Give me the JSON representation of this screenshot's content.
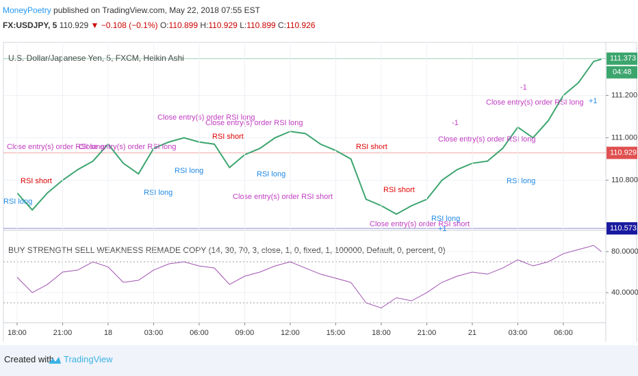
{
  "header": {
    "author": "MoneyPoetry",
    "published": "published on TradingView.com, May 22, 2018 07:55 EST",
    "symbol": "FX:USDJPY, 5",
    "price": "110.929",
    "change": "▼ −0.108 (−0.1%)",
    "ohlc": [
      {
        "label": "O:",
        "value": "110.899"
      },
      {
        "label": "H:",
        "value": "110.929"
      },
      {
        "label": "L:",
        "value": "110.899"
      },
      {
        "label": "C:",
        "value": "110.926"
      }
    ]
  },
  "chart_data": [
    {
      "type": "line",
      "title": "U.S. Dollar/Japanese Yen, 5, FXCM, Heikin Ashi",
      "x": [
        0,
        1,
        2,
        3,
        4,
        5,
        6,
        7,
        8,
        9,
        10,
        11,
        12,
        13,
        14,
        15,
        16,
        17,
        18,
        19,
        20,
        21,
        22,
        23,
        24,
        25,
        26,
        27,
        28,
        29,
        30,
        31,
        32,
        33,
        34,
        35,
        36,
        37,
        38,
        38.5
      ],
      "values": [
        110.74,
        110.66,
        110.74,
        110.8,
        110.85,
        110.89,
        110.97,
        110.88,
        110.83,
        110.95,
        110.98,
        111.0,
        110.98,
        110.97,
        110.86,
        110.92,
        110.95,
        111.0,
        111.03,
        111.02,
        110.97,
        110.94,
        110.9,
        110.71,
        110.68,
        110.64,
        110.68,
        110.71,
        110.8,
        110.85,
        110.88,
        110.89,
        110.95,
        111.05,
        111.0,
        111.08,
        111.2,
        111.26,
        111.36,
        111.37
      ],
      "color": "#3ca56e",
      "xlim": [
        -0.9,
        38.8
      ],
      "ylim": [
        110.57,
        111.44
      ],
      "yticks": [
        {
          "value": 111.2,
          "label": "111.200"
        },
        {
          "value": 111.0,
          "label": "111.000"
        },
        {
          "value": 110.8,
          "label": "110.800"
        }
      ],
      "grid": true,
      "markers": [
        {
          "value": 111.373,
          "color": "#3ca56e"
        },
        {
          "value": 110.929,
          "color": "#e05050"
        },
        {
          "value": 110.573,
          "color": "#1a1aa0"
        }
      ],
      "countdown": "04:48",
      "annotations": [
        {
          "text": "Close entry(s) order RSI long",
          "color": "#c03cc0"
        },
        {
          "text": "Close entry(s) order RSI long",
          "color": "#c03cc0"
        },
        {
          "text": "Close entry(s) order RSI long",
          "color": "#c03cc0"
        },
        {
          "text": "Close entry(s) order RSI long",
          "color": "#c03cc0"
        },
        {
          "text": "Close entry(s) order RSI long",
          "color": "#c03cc0"
        },
        {
          "text": "Close entry(s) order RSI long",
          "color": "#c03cc0"
        },
        {
          "text": "Close entry(s) order RSI short",
          "color": "#c03cc0"
        },
        {
          "text": "Close entry(s) order RSI short",
          "color": "#c03cc0"
        },
        {
          "text": "RSI short",
          "color": "#e00000"
        },
        {
          "text": "RSI short",
          "color": "#e00000"
        },
        {
          "text": "RSI short",
          "color": "#e00000"
        },
        {
          "text": "RSI short",
          "color": "#e00000"
        },
        {
          "text": "RSI long",
          "color": "#1e88e5"
        },
        {
          "text": "RSI long",
          "color": "#1e88e5"
        },
        {
          "text": "RSI long",
          "color": "#1e88e5"
        },
        {
          "text": "RSI long",
          "color": "#1e88e5"
        },
        {
          "text": "RSI long",
          "color": "#1e88e5"
        },
        {
          "text": "RSI long",
          "color": "#1e88e5"
        },
        {
          "text": "-1",
          "color": "#c03cc0"
        },
        {
          "text": "-1",
          "color": "#c03cc0"
        },
        {
          "text": "+1",
          "color": "#1e88e5"
        },
        {
          "text": "+1",
          "color": "#1e88e5"
        }
      ]
    },
    {
      "type": "line",
      "title": "BUY STRENGTH SELL WEAKNESS REMADE COPY (14, 30, 70, 3, close, 1, 0, fixed, 1, 100000, Default, 0, percent, 0)",
      "x": [
        0,
        1,
        2,
        3,
        4,
        5,
        6,
        7,
        8,
        9,
        10,
        11,
        12,
        13,
        14,
        15,
        16,
        17,
        18,
        19,
        20,
        21,
        22,
        23,
        24,
        25,
        26,
        27,
        28,
        29,
        30,
        31,
        32,
        33,
        34,
        35,
        36,
        37,
        38,
        38.5
      ],
      "values": [
        55,
        40,
        48,
        60,
        62,
        70,
        65,
        50,
        52,
        62,
        68,
        70,
        66,
        64,
        48,
        56,
        60,
        66,
        70,
        64,
        58,
        54,
        50,
        30,
        25,
        35,
        32,
        40,
        50,
        56,
        60,
        58,
        64,
        72,
        66,
        70,
        78,
        82,
        86,
        80
      ],
      "color": "#a050b0",
      "xlim": [
        -0.9,
        38.8
      ],
      "ylim": [
        12,
        98.7
      ],
      "yticks": [
        {
          "value": 80,
          "label": "80.0000"
        },
        {
          "value": 40,
          "label": "40.0000"
        }
      ],
      "bands": [
        70,
        30
      ],
      "grid": true,
      "xticks": [
        {
          "value": 0,
          "label": "18:00"
        },
        {
          "value": 3,
          "label": "21:00"
        },
        {
          "value": 6,
          "label": "18"
        },
        {
          "value": 9,
          "label": "03:00"
        },
        {
          "value": 12,
          "label": "06:00"
        },
        {
          "value": 15,
          "label": "09:00"
        },
        {
          "value": 18,
          "label": "12:00"
        },
        {
          "value": 21,
          "label": "15:00"
        },
        {
          "value": 24,
          "label": "18:00"
        },
        {
          "value": 27,
          "label": "21:00"
        },
        {
          "value": 30,
          "label": "21"
        },
        {
          "value": 33,
          "label": "03:00"
        },
        {
          "value": 36,
          "label": "06:00"
        }
      ]
    }
  ],
  "footer": {
    "created": "Created with",
    "brand": "TradingView"
  }
}
